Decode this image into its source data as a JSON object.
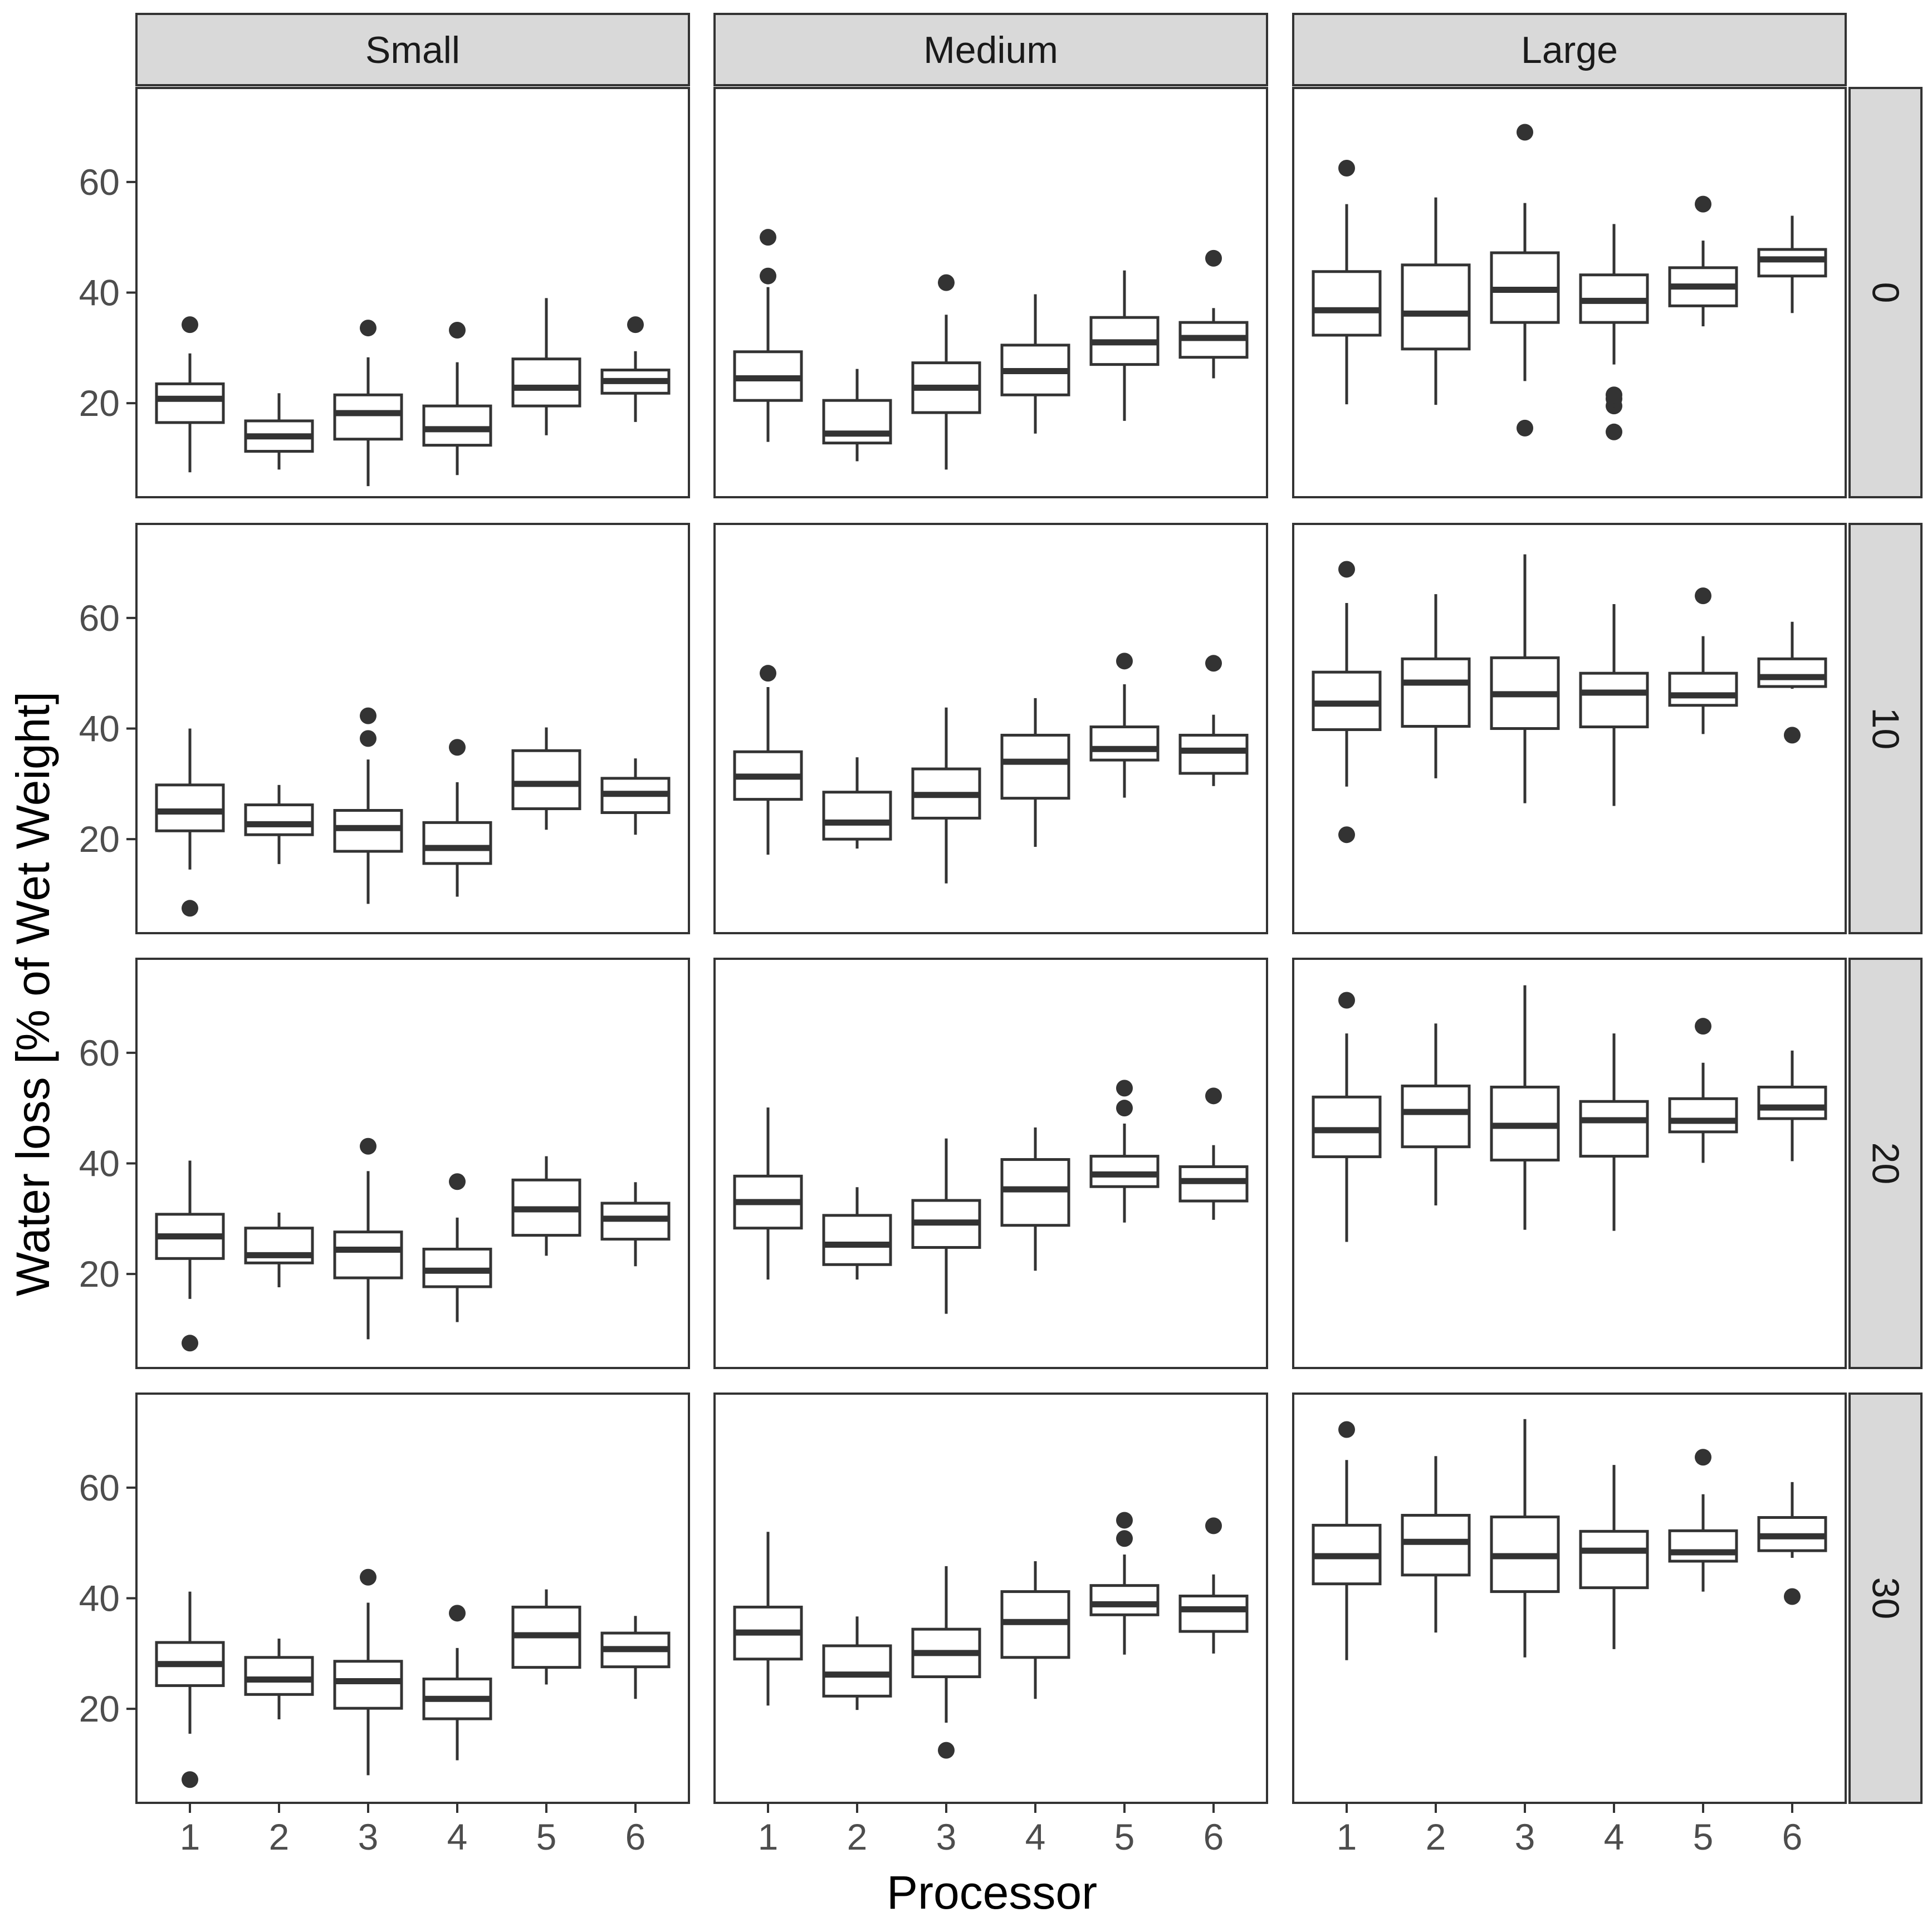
{
  "chart_data": {
    "type": "boxplot",
    "xlabel": "Processor",
    "ylabel": "Water loss [% of Wet Weight]",
    "categories": [
      "1",
      "2",
      "3",
      "4",
      "5",
      "6"
    ],
    "ylim": [
      3,
      77
    ],
    "yticks": [
      20,
      40,
      60
    ],
    "column_facets": [
      "Small",
      "Medium",
      "Large"
    ],
    "row_facets": [
      "0",
      "10",
      "20",
      "30"
    ],
    "colors": {
      "strip_bg": "#d9d9d9",
      "stroke": "#333333",
      "panel_bg": "#ffffff",
      "tick_text": "#4d4d4d"
    },
    "panels": [
      {
        "col": "Small",
        "row": "0",
        "boxes": [
          {
            "x": "1",
            "min": 7.5,
            "q1": 16.5,
            "median": 20.8,
            "q3": 23.5,
            "max": 29,
            "outliers": [
              34.2
            ]
          },
          {
            "x": "2",
            "min": 8,
            "q1": 11.3,
            "median": 14,
            "q3": 16.8,
            "max": 21.8,
            "outliers": []
          },
          {
            "x": "3",
            "min": 5,
            "q1": 13.5,
            "median": 18.2,
            "q3": 21.5,
            "max": 28.3,
            "outliers": [
              33.6
            ]
          },
          {
            "x": "4",
            "min": 7,
            "q1": 12.4,
            "median": 15.3,
            "q3": 19.5,
            "max": 27.4,
            "outliers": [
              33.2
            ]
          },
          {
            "x": "5",
            "min": 14.2,
            "q1": 19.5,
            "median": 22.8,
            "q3": 28,
            "max": 39,
            "outliers": []
          },
          {
            "x": "6",
            "min": 16.6,
            "q1": 21.8,
            "median": 24,
            "q3": 26,
            "max": 29.4,
            "outliers": [
              34.2
            ]
          }
        ]
      },
      {
        "col": "Medium",
        "row": "0",
        "boxes": [
          {
            "x": "1",
            "min": 13,
            "q1": 20.5,
            "median": 24.5,
            "q3": 29.3,
            "max": 41,
            "outliers": [
              43,
              50
            ]
          },
          {
            "x": "2",
            "min": 9.5,
            "q1": 12.8,
            "median": 14.5,
            "q3": 20.5,
            "max": 26.2,
            "outliers": []
          },
          {
            "x": "3",
            "min": 8,
            "q1": 18.3,
            "median": 22.8,
            "q3": 27.3,
            "max": 36,
            "outliers": [
              41.8
            ]
          },
          {
            "x": "4",
            "min": 14.5,
            "q1": 21.5,
            "median": 25.8,
            "q3": 30.5,
            "max": 39.7,
            "outliers": []
          },
          {
            "x": "5",
            "min": 16.8,
            "q1": 27,
            "median": 31,
            "q3": 35.5,
            "max": 44,
            "outliers": []
          },
          {
            "x": "6",
            "min": 24.5,
            "q1": 28.3,
            "median": 31.8,
            "q3": 34.6,
            "max": 37.2,
            "outliers": [
              46.2
            ]
          }
        ]
      },
      {
        "col": "Large",
        "row": "0",
        "boxes": [
          {
            "x": "1",
            "min": 19.8,
            "q1": 32.3,
            "median": 36.8,
            "q3": 43.8,
            "max": 56,
            "outliers": [
              62.5
            ]
          },
          {
            "x": "2",
            "min": 19.7,
            "q1": 29.8,
            "median": 36.2,
            "q3": 45,
            "max": 57.2,
            "outliers": []
          },
          {
            "x": "3",
            "min": 24,
            "q1": 34.6,
            "median": 40.5,
            "q3": 47.2,
            "max": 56.2,
            "outliers": [
              15.5,
              69
            ]
          },
          {
            "x": "4",
            "min": 27,
            "q1": 34.6,
            "median": 38.5,
            "q3": 43.2,
            "max": 52.4,
            "outliers": [
              14.8,
              19.5,
              20.8,
              21.5
            ]
          },
          {
            "x": "5",
            "min": 33.9,
            "q1": 37.6,
            "median": 41.1,
            "q3": 44.5,
            "max": 49.4,
            "outliers": [
              56
            ]
          },
          {
            "x": "6",
            "min": 36.3,
            "q1": 43,
            "median": 46,
            "q3": 47.8,
            "max": 53.9,
            "outliers": []
          }
        ]
      },
      {
        "col": "Small",
        "row": "10",
        "boxes": [
          {
            "x": "1",
            "min": 14.5,
            "q1": 21.5,
            "median": 25,
            "q3": 29.8,
            "max": 40,
            "outliers": [
              7.5
            ]
          },
          {
            "x": "2",
            "min": 15.5,
            "q1": 20.8,
            "median": 22.7,
            "q3": 26.2,
            "max": 29.8,
            "outliers": []
          },
          {
            "x": "3",
            "min": 8.3,
            "q1": 17.8,
            "median": 22,
            "q3": 25.2,
            "max": 34.4,
            "outliers": [
              38.2,
              42.3
            ]
          },
          {
            "x": "4",
            "min": 9.6,
            "q1": 15.6,
            "median": 18.4,
            "q3": 23,
            "max": 30.3,
            "outliers": [
              36.6
            ]
          },
          {
            "x": "5",
            "min": 21.7,
            "q1": 25.5,
            "median": 30,
            "q3": 36,
            "max": 40.2,
            "outliers": []
          },
          {
            "x": "6",
            "min": 20.8,
            "q1": 24.8,
            "median": 28.2,
            "q3": 31,
            "max": 34.6,
            "outliers": []
          }
        ]
      },
      {
        "col": "Medium",
        "row": "10",
        "boxes": [
          {
            "x": "1",
            "min": 17.2,
            "q1": 27.2,
            "median": 31.3,
            "q3": 35.8,
            "max": 47.5,
            "outliers": [
              50
            ]
          },
          {
            "x": "2",
            "min": 18.3,
            "q1": 20,
            "median": 23,
            "q3": 28.5,
            "max": 34.8,
            "outliers": []
          },
          {
            "x": "3",
            "min": 12,
            "q1": 23.8,
            "median": 28,
            "q3": 32.7,
            "max": 43.8,
            "outliers": []
          },
          {
            "x": "4",
            "min": 18.6,
            "q1": 27.4,
            "median": 34,
            "q3": 38.8,
            "max": 45.5,
            "outliers": []
          },
          {
            "x": "5",
            "min": 27.5,
            "q1": 34.3,
            "median": 36.3,
            "q3": 40.3,
            "max": 48,
            "outliers": [
              52.2
            ]
          },
          {
            "x": "6",
            "min": 29.6,
            "q1": 31.9,
            "median": 36,
            "q3": 38.8,
            "max": 42.5,
            "outliers": [
              51.8
            ]
          }
        ]
      },
      {
        "col": "Large",
        "row": "10",
        "boxes": [
          {
            "x": "1",
            "min": 29.5,
            "q1": 39.8,
            "median": 44.5,
            "q3": 50.2,
            "max": 62.7,
            "outliers": [
              20.8,
              68.8
            ]
          },
          {
            "x": "2",
            "min": 31,
            "q1": 40.4,
            "median": 48.3,
            "q3": 52.6,
            "max": 64.3,
            "outliers": []
          },
          {
            "x": "3",
            "min": 26.5,
            "q1": 40,
            "median": 46.2,
            "q3": 52.8,
            "max": 71.5,
            "outliers": []
          },
          {
            "x": "4",
            "min": 26,
            "q1": 40.3,
            "median": 46.5,
            "q3": 50,
            "max": 62.5,
            "outliers": []
          },
          {
            "x": "5",
            "min": 39,
            "q1": 44.2,
            "median": 46,
            "q3": 50,
            "max": 56.7,
            "outliers": [
              64
            ]
          },
          {
            "x": "6",
            "min": 47.2,
            "q1": 47.6,
            "median": 49.3,
            "q3": 52.6,
            "max": 59.3,
            "outliers": [
              38.8
            ]
          }
        ]
      },
      {
        "col": "Small",
        "row": "20",
        "boxes": [
          {
            "x": "1",
            "min": 15.5,
            "q1": 22.8,
            "median": 26.8,
            "q3": 30.8,
            "max": 40.5,
            "outliers": [
              7.5
            ]
          },
          {
            "x": "2",
            "min": 17.6,
            "q1": 22,
            "median": 23.4,
            "q3": 28.3,
            "max": 31.1,
            "outliers": []
          },
          {
            "x": "3",
            "min": 8.2,
            "q1": 19.3,
            "median": 24.4,
            "q3": 27.6,
            "max": 38.6,
            "outliers": [
              43.1
            ]
          },
          {
            "x": "4",
            "min": 11.3,
            "q1": 17.7,
            "median": 20.6,
            "q3": 24.5,
            "max": 30.2,
            "outliers": [
              36.7
            ]
          },
          {
            "x": "5",
            "min": 23.3,
            "q1": 27,
            "median": 31.7,
            "q3": 37,
            "max": 41.3,
            "outliers": []
          },
          {
            "x": "6",
            "min": 21.4,
            "q1": 26.3,
            "median": 30,
            "q3": 32.8,
            "max": 36.6,
            "outliers": []
          }
        ]
      },
      {
        "col": "Medium",
        "row": "20",
        "boxes": [
          {
            "x": "1",
            "min": 19,
            "q1": 28.3,
            "median": 33,
            "q3": 37.7,
            "max": 50.1,
            "outliers": []
          },
          {
            "x": "2",
            "min": 19,
            "q1": 21.7,
            "median": 25.3,
            "q3": 30.6,
            "max": 35.7,
            "outliers": []
          },
          {
            "x": "3",
            "min": 12.8,
            "q1": 24.8,
            "median": 29.3,
            "q3": 33.3,
            "max": 44.5,
            "outliers": []
          },
          {
            "x": "4",
            "min": 20.6,
            "q1": 28.8,
            "median": 35.3,
            "q3": 40.7,
            "max": 46.5,
            "outliers": []
          },
          {
            "x": "5",
            "min": 29.3,
            "q1": 35.8,
            "median": 38,
            "q3": 41.3,
            "max": 47.2,
            "outliers": [
              50,
              53.6
            ]
          },
          {
            "x": "6",
            "min": 29.8,
            "q1": 33.2,
            "median": 36.8,
            "q3": 39.4,
            "max": 43.3,
            "outliers": [
              52.2
            ]
          }
        ]
      },
      {
        "col": "Large",
        "row": "20",
        "boxes": [
          {
            "x": "1",
            "min": 25.8,
            "q1": 41.2,
            "median": 46,
            "q3": 52,
            "max": 63.5,
            "outliers": [
              69.5
            ]
          },
          {
            "x": "2",
            "min": 32.4,
            "q1": 43,
            "median": 49.3,
            "q3": 54,
            "max": 65.3,
            "outliers": []
          },
          {
            "x": "3",
            "min": 28,
            "q1": 40.6,
            "median": 46.8,
            "q3": 53.8,
            "max": 72.2,
            "outliers": []
          },
          {
            "x": "4",
            "min": 27.8,
            "q1": 41.3,
            "median": 47.8,
            "q3": 51.2,
            "max": 63.5,
            "outliers": []
          },
          {
            "x": "5",
            "min": 40.1,
            "q1": 45.7,
            "median": 47.7,
            "q3": 51.7,
            "max": 58.2,
            "outliers": [
              64.8
            ]
          },
          {
            "x": "6",
            "min": 40.4,
            "q1": 48.1,
            "median": 50.1,
            "q3": 53.8,
            "max": 60.4,
            "outliers": []
          }
        ]
      },
      {
        "col": "Small",
        "row": "30",
        "boxes": [
          {
            "x": "1",
            "min": 15.5,
            "q1": 24.2,
            "median": 28.1,
            "q3": 32,
            "max": 41.2,
            "outliers": [
              7.2
            ]
          },
          {
            "x": "2",
            "min": 18.1,
            "q1": 22.6,
            "median": 25.3,
            "q3": 29.3,
            "max": 32.7,
            "outliers": []
          },
          {
            "x": "3",
            "min": 8,
            "q1": 20.1,
            "median": 25,
            "q3": 28.6,
            "max": 39.2,
            "outliers": [
              43.8
            ]
          },
          {
            "x": "4",
            "min": 10.7,
            "q1": 18.2,
            "median": 21.8,
            "q3": 25.4,
            "max": 31,
            "outliers": [
              37.3
            ]
          },
          {
            "x": "5",
            "min": 24.4,
            "q1": 27.5,
            "median": 33.3,
            "q3": 38.4,
            "max": 41.6,
            "outliers": []
          },
          {
            "x": "6",
            "min": 21.8,
            "q1": 27.6,
            "median": 30.8,
            "q3": 33.7,
            "max": 36.8,
            "outliers": []
          }
        ]
      },
      {
        "col": "Medium",
        "row": "30",
        "boxes": [
          {
            "x": "1",
            "min": 20.6,
            "q1": 29,
            "median": 33.8,
            "q3": 38.4,
            "max": 52,
            "outliers": []
          },
          {
            "x": "2",
            "min": 19.8,
            "q1": 22.3,
            "median": 26.2,
            "q3": 31.4,
            "max": 36.7,
            "outliers": []
          },
          {
            "x": "3",
            "min": 17.5,
            "q1": 25.8,
            "median": 30.1,
            "q3": 34.4,
            "max": 45.8,
            "outliers": [
              12.5
            ]
          },
          {
            "x": "4",
            "min": 21.8,
            "q1": 29.3,
            "median": 35.7,
            "q3": 41.2,
            "max": 46.7,
            "outliers": []
          },
          {
            "x": "5",
            "min": 29.8,
            "q1": 37,
            "median": 38.9,
            "q3": 42.3,
            "max": 47.9,
            "outliers": [
              50.8,
              54.1
            ]
          },
          {
            "x": "6",
            "min": 30,
            "q1": 34,
            "median": 38,
            "q3": 40.4,
            "max": 44.3,
            "outliers": [
              53.1
            ]
          }
        ]
      },
      {
        "col": "Large",
        "row": "30",
        "boxes": [
          {
            "x": "1",
            "min": 28.8,
            "q1": 42.6,
            "median": 47.6,
            "q3": 53.2,
            "max": 65,
            "outliers": [
              70.5
            ]
          },
          {
            "x": "2",
            "min": 33.8,
            "q1": 44.2,
            "median": 50.2,
            "q3": 55,
            "max": 65.7,
            "outliers": []
          },
          {
            "x": "3",
            "min": 29.3,
            "q1": 41.2,
            "median": 47.6,
            "q3": 54.7,
            "max": 72.4,
            "outliers": []
          },
          {
            "x": "4",
            "min": 30.8,
            "q1": 41.9,
            "median": 48.6,
            "q3": 52.1,
            "max": 64.1,
            "outliers": []
          },
          {
            "x": "5",
            "min": 41.2,
            "q1": 46.7,
            "median": 48.3,
            "q3": 52.2,
            "max": 58.8,
            "outliers": [
              65.5
            ]
          },
          {
            "x": "6",
            "min": 47.3,
            "q1": 48.6,
            "median": 51.2,
            "q3": 54.6,
            "max": 61,
            "outliers": [
              40.3
            ]
          }
        ]
      }
    ]
  }
}
